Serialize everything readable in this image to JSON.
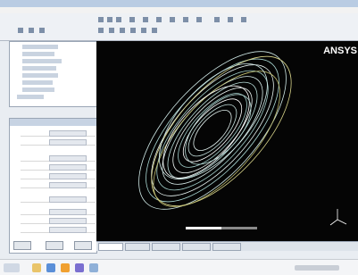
{
  "viewport": {
    "logo": "ANSYS"
  }
}
